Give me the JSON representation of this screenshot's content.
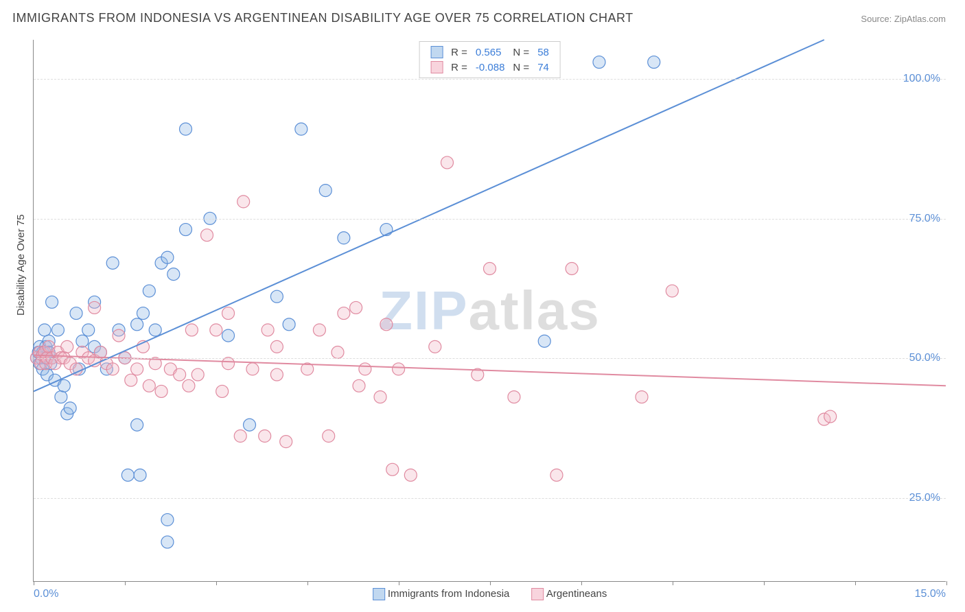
{
  "title": "IMMIGRANTS FROM INDONESIA VS ARGENTINEAN DISABILITY AGE OVER 75 CORRELATION CHART",
  "source_label": "Source:",
  "source_name": "ZipAtlas.com",
  "watermark_z": "ZIP",
  "watermark_rest": "atlas",
  "chart": {
    "type": "scatter",
    "background_color": "#ffffff",
    "grid_color": "#dddddd",
    "axis_color": "#888888",
    "xlim": [
      0,
      15
    ],
    "ylim": [
      10,
      107
    ],
    "x_ticks": [
      0,
      1.5,
      3.0,
      4.5,
      6.0,
      7.5,
      9.0,
      10.5,
      12.0,
      13.5,
      15.0
    ],
    "x_tick_labels_left": "0.0%",
    "x_tick_labels_right": "15.0%",
    "y_gridlines": [
      25,
      50,
      75,
      100
    ],
    "y_tick_labels": [
      "25.0%",
      "50.0%",
      "75.0%",
      "100.0%"
    ],
    "y_axis_title": "Disability Age Over 75",
    "marker_radius": 9,
    "marker_stroke_width": 1.2,
    "marker_fill_opacity": 0.35,
    "line_width": 2,
    "title_fontsize": 18,
    "label_fontsize": 15,
    "tick_label_color": "#5b8fd6",
    "series": {
      "blue": {
        "label": "Immigrants from Indonesia",
        "R": "0.565",
        "N": "58",
        "color_stroke": "#5b8fd6",
        "color_fill": "#8fb8e6",
        "trend": {
          "x1": 0,
          "y1": 44,
          "x2": 13.0,
          "y2": 107
        },
        "points": [
          [
            0.05,
            50
          ],
          [
            0.08,
            51
          ],
          [
            0.1,
            52
          ],
          [
            0.1,
            49
          ],
          [
            0.12,
            50
          ],
          [
            0.15,
            51
          ],
          [
            0.15,
            48
          ],
          [
            0.18,
            55
          ],
          [
            0.2,
            50
          ],
          [
            0.2,
            52
          ],
          [
            0.22,
            47
          ],
          [
            0.25,
            53
          ],
          [
            0.25,
            51
          ],
          [
            0.28,
            49
          ],
          [
            0.3,
            50
          ],
          [
            0.3,
            60
          ],
          [
            0.35,
            46
          ],
          [
            0.4,
            55
          ],
          [
            0.45,
            43
          ],
          [
            0.5,
            45
          ],
          [
            0.55,
            40
          ],
          [
            0.6,
            41
          ],
          [
            0.7,
            58
          ],
          [
            0.75,
            48
          ],
          [
            0.8,
            53
          ],
          [
            0.9,
            55
          ],
          [
            1.0,
            60
          ],
          [
            1.0,
            52
          ],
          [
            1.1,
            51
          ],
          [
            1.2,
            48
          ],
          [
            1.3,
            67
          ],
          [
            1.4,
            55
          ],
          [
            1.5,
            50
          ],
          [
            1.55,
            29
          ],
          [
            1.7,
            38
          ],
          [
            1.7,
            56
          ],
          [
            1.75,
            29
          ],
          [
            1.8,
            58
          ],
          [
            1.9,
            62
          ],
          [
            2.0,
            55
          ],
          [
            2.1,
            67
          ],
          [
            2.2,
            17
          ],
          [
            2.2,
            68
          ],
          [
            2.2,
            21
          ],
          [
            2.3,
            65
          ],
          [
            2.5,
            73
          ],
          [
            2.5,
            91
          ],
          [
            2.9,
            75
          ],
          [
            3.2,
            54
          ],
          [
            3.55,
            38
          ],
          [
            4.0,
            61
          ],
          [
            4.2,
            56
          ],
          [
            4.4,
            91
          ],
          [
            4.8,
            80
          ],
          [
            5.1,
            71.5
          ],
          [
            5.8,
            73
          ],
          [
            8.4,
            53
          ],
          [
            9.3,
            103
          ],
          [
            10.2,
            103
          ]
        ]
      },
      "pink": {
        "label": "Argentineans",
        "R": "-0.088",
        "N": "74",
        "color_stroke": "#e08aa0",
        "color_fill": "#f0b8c6",
        "trend": {
          "x1": 0,
          "y1": 50.5,
          "x2": 15,
          "y2": 45
        },
        "points": [
          [
            0.05,
            50
          ],
          [
            0.1,
            51
          ],
          [
            0.12,
            49
          ],
          [
            0.15,
            50.5
          ],
          [
            0.18,
            51
          ],
          [
            0.2,
            49
          ],
          [
            0.22,
            50
          ],
          [
            0.25,
            52
          ],
          [
            0.3,
            50
          ],
          [
            0.35,
            49
          ],
          [
            0.4,
            51
          ],
          [
            0.45,
            50
          ],
          [
            0.5,
            50
          ],
          [
            0.55,
            52
          ],
          [
            0.6,
            49
          ],
          [
            0.7,
            48
          ],
          [
            0.8,
            51
          ],
          [
            0.9,
            50
          ],
          [
            1.0,
            49.5
          ],
          [
            1.0,
            59
          ],
          [
            1.1,
            51
          ],
          [
            1.2,
            49
          ],
          [
            1.3,
            48
          ],
          [
            1.4,
            54
          ],
          [
            1.5,
            50
          ],
          [
            1.6,
            46
          ],
          [
            1.7,
            48
          ],
          [
            1.8,
            52
          ],
          [
            1.9,
            45
          ],
          [
            2.0,
            49
          ],
          [
            2.1,
            44
          ],
          [
            2.25,
            48
          ],
          [
            2.4,
            47
          ],
          [
            2.55,
            45
          ],
          [
            2.6,
            55
          ],
          [
            2.7,
            47
          ],
          [
            2.85,
            72
          ],
          [
            3.0,
            55
          ],
          [
            3.1,
            44
          ],
          [
            3.2,
            49
          ],
          [
            3.2,
            58
          ],
          [
            3.4,
            36
          ],
          [
            3.45,
            78
          ],
          [
            3.6,
            48
          ],
          [
            3.8,
            36
          ],
          [
            3.85,
            55
          ],
          [
            4.0,
            47
          ],
          [
            4.0,
            52
          ],
          [
            4.15,
            35
          ],
          [
            4.5,
            48
          ],
          [
            4.7,
            55
          ],
          [
            4.85,
            36
          ],
          [
            5.0,
            51
          ],
          [
            5.1,
            58
          ],
          [
            5.3,
            59
          ],
          [
            5.35,
            45
          ],
          [
            5.45,
            48
          ],
          [
            5.7,
            43
          ],
          [
            5.8,
            56
          ],
          [
            5.9,
            30
          ],
          [
            6.0,
            48
          ],
          [
            6.2,
            29
          ],
          [
            6.6,
            52
          ],
          [
            6.8,
            85
          ],
          [
            7.3,
            47
          ],
          [
            7.5,
            66
          ],
          [
            7.9,
            43
          ],
          [
            8.6,
            29
          ],
          [
            8.85,
            66
          ],
          [
            10.0,
            43
          ],
          [
            10.5,
            62
          ],
          [
            13.0,
            39
          ],
          [
            13.1,
            39.5
          ]
        ]
      }
    },
    "legend_top": {
      "r_label": "R =",
      "n_label": "N ="
    }
  }
}
